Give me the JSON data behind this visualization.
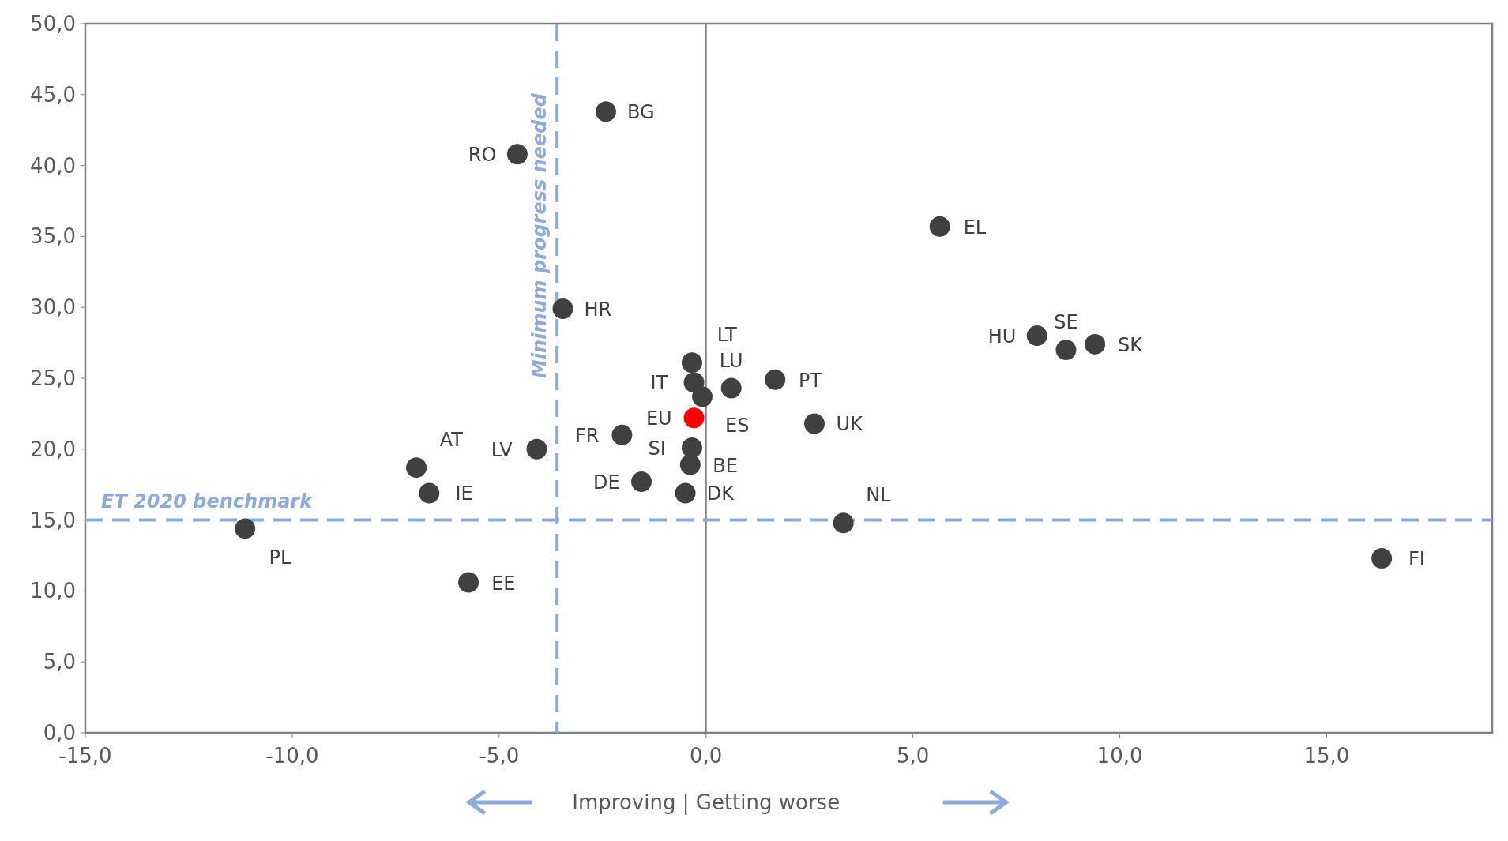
{
  "chart_data": {
    "type": "scatter",
    "xlabel": "Improving | Getting worse",
    "x": [
      -2.42,
      -4.56,
      5.65,
      -3.46,
      8.0,
      8.7,
      9.4,
      -0.34,
      0.61,
      1.67,
      -0.29,
      -0.09,
      -0.29,
      2.62,
      -2.03,
      -0.34,
      -4.09,
      -0.38,
      -7.0,
      -1.56,
      -6.69,
      -0.5,
      3.32,
      16.33,
      -11.14,
      -5.74
    ],
    "values": [
      43.8,
      40.8,
      35.7,
      29.9,
      28.0,
      27.0,
      27.4,
      26.1,
      24.3,
      24.9,
      24.7,
      23.7,
      22.2,
      21.8,
      21.0,
      20.1,
      20.0,
      18.9,
      18.7,
      17.7,
      16.9,
      16.9,
      14.8,
      12.3,
      14.4,
      10.6
    ],
    "value_labels": [
      "BG",
      "RO",
      "EL",
      "HR",
      "HU",
      "SE",
      "SK",
      "LT",
      "LU",
      "PT",
      "IT",
      "ES",
      "EU",
      "UK",
      "FR",
      "SI",
      "LV",
      "BE",
      "AT",
      "DE",
      "IE",
      "DK",
      "NL",
      "FI",
      "PL",
      "EE"
    ],
    "colors": [
      "#404040",
      "#404040",
      "#404040",
      "#404040",
      "#404040",
      "#404040",
      "#404040",
      "#404040",
      "#404040",
      "#404040",
      "#404040",
      "#404040",
      "#ff0000",
      "#404040",
      "#404040",
      "#404040",
      "#404040",
      "#404040",
      "#404040",
      "#404040",
      "#404040",
      "#404040",
      "#404040",
      "#404040",
      "#404040",
      "#404040"
    ],
    "marker": "circle",
    "grid": false,
    "xlim": [
      -15,
      19
    ],
    "xticks": [
      {
        "value": -15,
        "label": "-15,0"
      },
      {
        "value": -10,
        "label": "-10,0"
      },
      {
        "value": -5,
        "label": "-5,0"
      },
      {
        "value": 0,
        "label": "0,0"
      },
      {
        "value": 5,
        "label": "5,0"
      },
      {
        "value": 10,
        "label": "10,0"
      },
      {
        "value": 15,
        "label": "15,0"
      }
    ],
    "ylim": [
      0,
      50
    ],
    "yticks": [
      {
        "value": 0,
        "label": "0,0"
      },
      {
        "value": 5,
        "label": "5,0"
      },
      {
        "value": 10,
        "label": "10,0"
      },
      {
        "value": 15,
        "label": "15,0"
      },
      {
        "value": 20,
        "label": "20,0"
      },
      {
        "value": 25,
        "label": "25,0"
      },
      {
        "value": 30,
        "label": "30,0"
      },
      {
        "value": 35,
        "label": "35,0"
      },
      {
        "value": 40,
        "label": "40,0"
      },
      {
        "value": 45,
        "label": "45,0"
      },
      {
        "value": 50,
        "label": "50,0"
      }
    ],
    "ref_lines": [
      {
        "axis": "x",
        "value": 0,
        "color": "#808080",
        "line_style": "solid"
      },
      {
        "axis": "x",
        "value": -3.6,
        "label": "Minimum progress needed",
        "color": "#8eaadb",
        "line_style": "dashed"
      },
      {
        "axis": "y",
        "value": 15,
        "label": "ET 2020 benchmark",
        "color": "#8eaadb",
        "line_style": "dashed"
      }
    ]
  }
}
